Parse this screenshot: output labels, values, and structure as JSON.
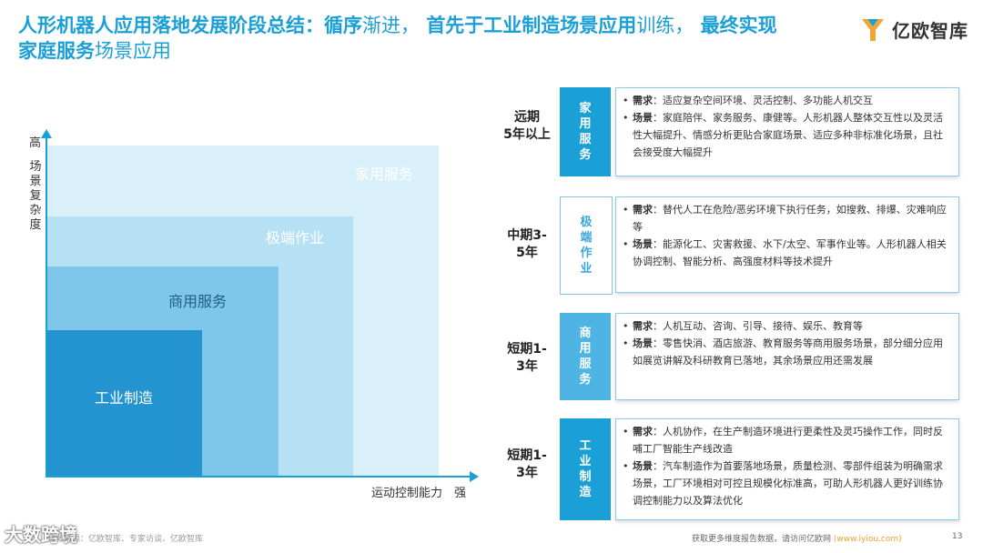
{
  "header": {
    "title_part1": "人形机器人应用落地发展阶段总结：",
    "title_part2": "循序",
    "title_part3": "渐进，",
    "title_part4": "首先于工业制造场景应用",
    "title_part5": "训练，",
    "title_part6": "最终实现",
    "title_line2a": "家庭服务",
    "title_line2b": "场景应用",
    "logo_text": "亿欧智库"
  },
  "diagram": {
    "y_high": "高",
    "y_label": "场景复杂度",
    "x_label": "运动控制能力",
    "x_strong": "强",
    "blocks": [
      "家用服务",
      "极端作业",
      "商用服务",
      "工业制造"
    ]
  },
  "rows": [
    {
      "period": "远期\n5年以上",
      "tag": "家用服务",
      "items": [
        {
          "label": "需求",
          "text": "：适应复杂空间环境、灵活控制、多功能人机交互"
        },
        {
          "label": "场景",
          "text": "：家庭陪伴、家务服务、康健等。人形机器人整体交互性以及灵活性大幅提升、情感分析更贴合家庭场景、适应多种非标准化场景，且社会接受度大幅提升"
        }
      ]
    },
    {
      "period": "中期3-\n5年",
      "tag": "极端作业",
      "items": [
        {
          "label": "需求",
          "text": "：替代人工在危险/恶劣环境下执行任务，如搜救、排爆、灾难响应等"
        },
        {
          "label": "场景",
          "text": "：能源化工、灾害救援、水下/太空、军事作业等。人形机器人相关协调控制、智能分析、高强度材料等技术提升"
        }
      ]
    },
    {
      "period": "短期1-\n3年",
      "tag": "商用服务",
      "items": [
        {
          "label": "需求",
          "text": "：人机互动、咨询、引导、接待、娱乐、教育等"
        },
        {
          "label": "场景",
          "text": "：零售快消、酒店旅游、教育服务等商用服务场景，部分细分应用如展览讲解及科研教育已落地，其余场景应用还需发展"
        }
      ]
    },
    {
      "period": "短期1-\n3年",
      "tag": "工业制造",
      "items": [
        {
          "label": "需求",
          "text": "：人机协作，在生产制造环境进行更柔性及灵巧操作工作，同时反哺工厂智能生产线改造"
        },
        {
          "label": "场景",
          "text": "：汽车制造作为首要落地场景，质量检测、零部件组装为明确需求场景，工厂环境相对可控且规模化标准高，可助人形机器人更好训练协调控制能力以及算法优化"
        }
      ]
    }
  ],
  "footer": {
    "source": "资料来源：亿欧智库、专家访谈、亿欧智库",
    "more": "获取更多维度报告数据，请访问亿欧网",
    "link": "(www.iyiou.com)",
    "page": "13",
    "watermark_brand": "大数跨境"
  }
}
